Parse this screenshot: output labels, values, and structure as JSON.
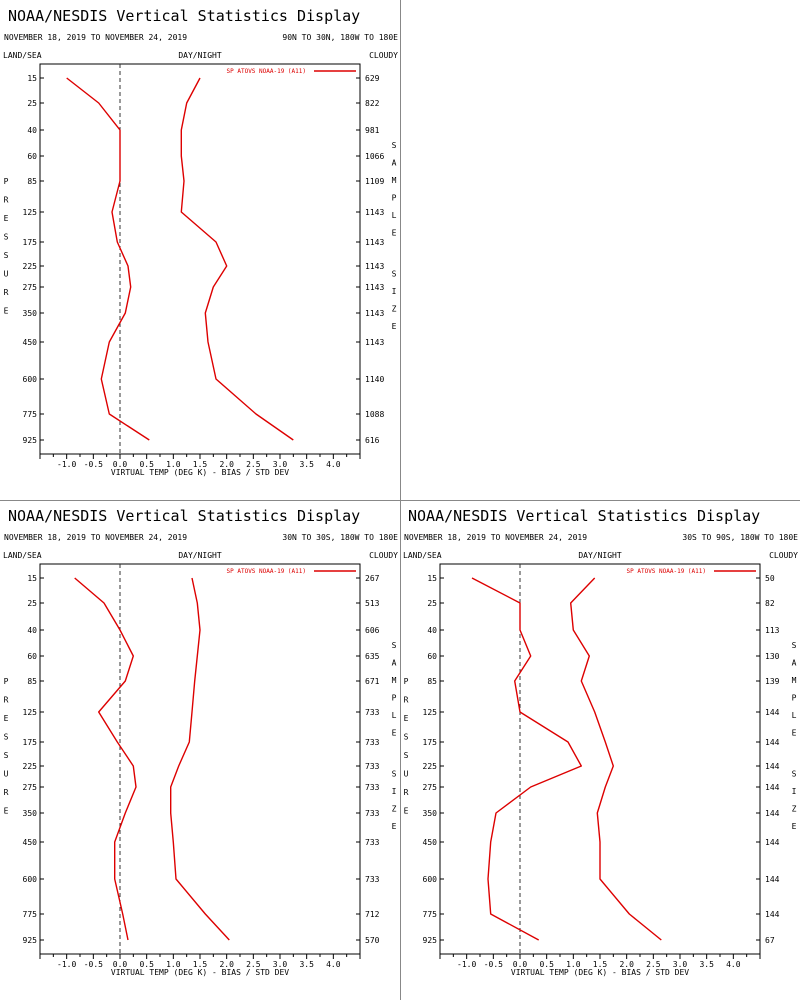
{
  "chart_data": [
    {
      "type": "line",
      "title": "NOAA/NESDIS Vertical Statistics Display",
      "date_range": "NOVEMBER 18, 2019 TO NOVEMBER 24, 2019",
      "region": "90N TO 30N, 180W TO 180E",
      "header_left": "LAND/SEA",
      "header_center": "DAY/NIGHT",
      "header_right": "CLOUDY",
      "legend": "SP ATOVS NOAA-19 (A11)",
      "xlabel": "VIRTUAL TEMP (DEG K) - BIAS / STD DEV",
      "ylabel": "PRESSURE",
      "y2label": "SAMPLE SIZE",
      "xlim": [
        -1.5,
        4.5
      ],
      "xticks": [
        "-1.0",
        "-0.5",
        "0.0",
        "0.5",
        "1.0",
        "1.5",
        "2.0",
        "2.5",
        "3.0",
        "3.5",
        "4.0"
      ],
      "pressure_levels": [
        "15",
        "25",
        "40",
        "60",
        "85",
        "125",
        "175",
        "225",
        "275",
        "350",
        "450",
        "600",
        "775",
        "925"
      ],
      "sample_sizes": [
        "629",
        "822",
        "981",
        "1066",
        "1109",
        "1143",
        "1143",
        "1143",
        "1143",
        "1143",
        "1143",
        "1140",
        "1088",
        "616"
      ],
      "series": [
        {
          "name": "BIAS",
          "values": [
            -1.0,
            -0.4,
            0.0,
            0.0,
            0.0,
            -0.15,
            -0.05,
            0.15,
            0.2,
            0.1,
            -0.2,
            -0.35,
            -0.2,
            0.55
          ]
        },
        {
          "name": "STD DEV",
          "values": [
            1.5,
            1.25,
            1.15,
            1.15,
            1.2,
            1.15,
            1.8,
            2.0,
            1.75,
            1.6,
            1.65,
            1.8,
            2.55,
            3.25
          ]
        }
      ],
      "color": "#dd0000",
      "zero_line": true
    },
    {
      "type": "line",
      "title": "NOAA/NESDIS Vertical Statistics Display",
      "date_range": "NOVEMBER 18, 2019 TO NOVEMBER 24, 2019",
      "region": "30N TO 30S, 180W TO 180E",
      "header_left": "LAND/SEA",
      "header_center": "DAY/NIGHT",
      "header_right": "CLOUDY",
      "legend": "SP ATOVS NOAA-19 (A11)",
      "xlabel": "VIRTUAL TEMP (DEG K) - BIAS / STD DEV",
      "ylabel": "PRESSURE",
      "y2label": "SAMPLE SIZE",
      "xlim": [
        -1.5,
        4.5
      ],
      "xticks": [
        "-1.0",
        "-0.5",
        "0.0",
        "0.5",
        "1.0",
        "1.5",
        "2.0",
        "2.5",
        "3.0",
        "3.5",
        "4.0"
      ],
      "pressure_levels": [
        "15",
        "25",
        "40",
        "60",
        "85",
        "125",
        "175",
        "225",
        "275",
        "350",
        "450",
        "600",
        "775",
        "925"
      ],
      "sample_sizes": [
        "267",
        "513",
        "606",
        "635",
        "671",
        "733",
        "733",
        "733",
        "733",
        "733",
        "733",
        "733",
        "712",
        "570"
      ],
      "series": [
        {
          "name": "BIAS",
          "values": [
            -0.85,
            -0.3,
            0.0,
            0.25,
            0.1,
            -0.4,
            -0.05,
            0.25,
            0.3,
            0.1,
            -0.1,
            -0.1,
            0.05,
            0.15
          ]
        },
        {
          "name": "STD DEV",
          "values": [
            1.35,
            1.45,
            1.5,
            1.45,
            1.4,
            1.35,
            1.3,
            1.1,
            0.95,
            0.95,
            1.0,
            1.05,
            1.6,
            2.05
          ]
        }
      ],
      "color": "#dd0000",
      "zero_line": true
    },
    {
      "type": "line",
      "title": "NOAA/NESDIS Vertical Statistics Display",
      "date_range": "NOVEMBER 18, 2019 TO NOVEMBER 24, 2019",
      "region": "30S TO 90S, 180W TO 180E",
      "header_left": "LAND/SEA",
      "header_center": "DAY/NIGHT",
      "header_right": "CLOUDY",
      "legend": "SP ATOVS NOAA-19 (A11)",
      "xlabel": "VIRTUAL TEMP (DEG K) - BIAS / STD DEV",
      "ylabel": "PRESSURE",
      "y2label": "SAMPLE SIZE",
      "xlim": [
        -1.5,
        4.5
      ],
      "xticks": [
        "-1.0",
        "-0.5",
        "0.0",
        "0.5",
        "1.0",
        "1.5",
        "2.0",
        "2.5",
        "3.0",
        "3.5",
        "4.0"
      ],
      "pressure_levels": [
        "15",
        "25",
        "40",
        "60",
        "85",
        "125",
        "175",
        "225",
        "275",
        "350",
        "450",
        "600",
        "775",
        "925"
      ],
      "sample_sizes": [
        "50",
        "82",
        "113",
        "130",
        "139",
        "144",
        "144",
        "144",
        "144",
        "144",
        "144",
        "144",
        "144",
        "67"
      ],
      "series": [
        {
          "name": "BIAS",
          "values": [
            -0.9,
            0.0,
            0.0,
            0.2,
            -0.1,
            0.0,
            0.9,
            1.15,
            0.2,
            -0.45,
            -0.55,
            -0.6,
            -0.55,
            0.35
          ]
        },
        {
          "name": "STD DEV",
          "values": [
            1.4,
            0.95,
            1.0,
            1.3,
            1.15,
            1.4,
            1.6,
            1.75,
            1.6,
            1.45,
            1.5,
            1.5,
            2.05,
            2.65
          ]
        }
      ],
      "color": "#dd0000",
      "zero_line": true
    }
  ]
}
